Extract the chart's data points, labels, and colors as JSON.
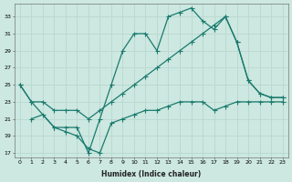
{
  "xlabel": "Humidex (Indice chaleur)",
  "bg_color": "#cce8e0",
  "line_color": "#1a7a6e",
  "grid_color": "#b8d8d0",
  "xlim": [
    -0.5,
    23.5
  ],
  "ylim": [
    16.5,
    34.5
  ],
  "yticks": [
    17,
    19,
    21,
    23,
    25,
    27,
    29,
    31,
    33
  ],
  "xticks": [
    0,
    1,
    2,
    3,
    4,
    5,
    6,
    7,
    8,
    9,
    10,
    11,
    12,
    13,
    14,
    15,
    16,
    17,
    18,
    19,
    20,
    21,
    22,
    23
  ],
  "series1_x": [
    0,
    1,
    3,
    4,
    5,
    6,
    7,
    8,
    9,
    10,
    11,
    12,
    13,
    14,
    15,
    16,
    17,
    18,
    19,
    20,
    21,
    22,
    23
  ],
  "series1_y": [
    25,
    23,
    20,
    20,
    20,
    17,
    21,
    25,
    29,
    31,
    31,
    29,
    33,
    33.5,
    34,
    32.5,
    31.5,
    33,
    30,
    25.5,
    24,
    23.5,
    23.5
  ],
  "series2_x": [
    0,
    1,
    2,
    3,
    4,
    5,
    6,
    7,
    8,
    9,
    10,
    11,
    12,
    13,
    14,
    15,
    16,
    17,
    18,
    19,
    20,
    21,
    22,
    23
  ],
  "series2_y": [
    25,
    23,
    23,
    22,
    22,
    22,
    21,
    22,
    23,
    24,
    25,
    26,
    27,
    28,
    29,
    30,
    31,
    32,
    33,
    30,
    25.5,
    24,
    23.5,
    23.5
  ],
  "series3_x": [
    1,
    2,
    3,
    4,
    5,
    6,
    7,
    8,
    9,
    10,
    11,
    12,
    13,
    14,
    15,
    16,
    17,
    18,
    19,
    20,
    21,
    22,
    23
  ],
  "series3_y": [
    21,
    21.5,
    20,
    19.5,
    19,
    17.5,
    17,
    20.5,
    21,
    21.5,
    22,
    22,
    22.5,
    23,
    23,
    23,
    22,
    22.5,
    23,
    23,
    23,
    23,
    23
  ]
}
